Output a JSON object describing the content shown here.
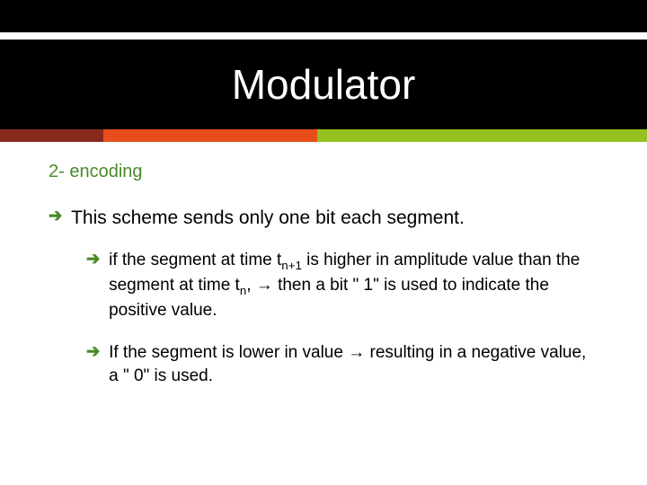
{
  "title": "Modulator",
  "accent_bar": {
    "segments": [
      {
        "color": "#8a2a1f",
        "width_pct": 16
      },
      {
        "color": "#e84e1c",
        "width_pct": 33
      },
      {
        "color": "#94c11f",
        "width_pct": 51
      }
    ]
  },
  "subtitle": {
    "text": "2- encoding",
    "color": "#4a8a2a"
  },
  "bullets": {
    "l1": {
      "arrow_color": "#4a8a2a",
      "text": "This scheme sends only one bit each segment."
    },
    "l2": [
      {
        "arrow_color": "#4a8a2a",
        "html": " if the segment at time t<sub>n+1</sub> is higher in amplitude value than the segment at time t<sub>n</sub>, → then a bit \" 1\" is used to indicate the positive value."
      },
      {
        "arrow_color": "#4a8a2a",
        "html": "If the segment is lower in value → resulting in a negative value, a \" 0\" is used."
      }
    ]
  },
  "colors": {
    "title_text": "#ffffff",
    "body_text": "#000000",
    "background": "#ffffff",
    "header_bg": "#000000"
  },
  "typography": {
    "title_fontsize": 46,
    "subtitle_fontsize": 20,
    "l1_fontsize": 21,
    "l2_fontsize": 19
  }
}
